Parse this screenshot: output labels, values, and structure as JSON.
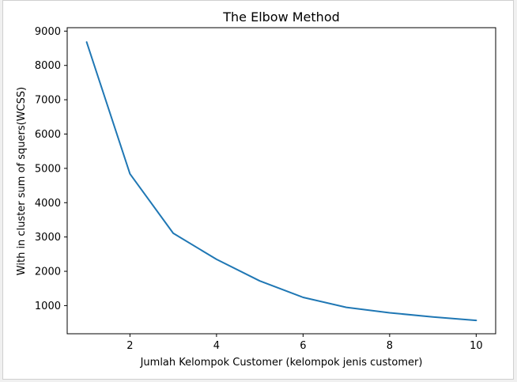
{
  "chart_data": {
    "type": "line",
    "title": "The Elbow Method",
    "xlabel": "Jumlah Kelompok Customer (kelompok jenis customer)",
    "ylabel": "With in cluster sum of squers(WCSS)",
    "x": [
      1,
      2,
      3,
      4,
      5,
      6,
      7,
      8,
      9,
      10
    ],
    "series": [
      {
        "values": [
          8680,
          4840,
          3110,
          2350,
          1720,
          1240,
          950,
          790,
          670,
          570
        ],
        "color": "#1f77b4"
      }
    ],
    "xlim": [
      0.55,
      10.45
    ],
    "ylim": [
      180,
      9100
    ],
    "xticks": [
      2,
      4,
      6,
      8,
      10
    ],
    "yticks": [
      1000,
      2000,
      3000,
      4000,
      5000,
      6000,
      7000,
      8000,
      9000
    ],
    "grid": false,
    "legend": "none"
  }
}
